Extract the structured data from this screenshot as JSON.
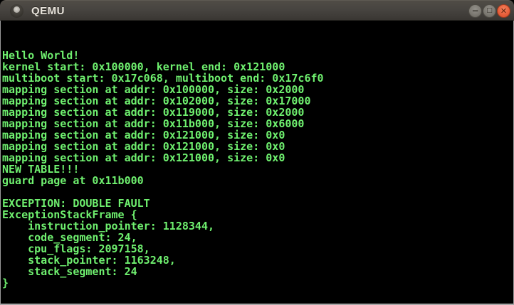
{
  "window": {
    "title": "QEMU",
    "controls": {
      "minimize_glyph": "−",
      "maximize_glyph": "□",
      "close_glyph": "✕"
    }
  },
  "colors": {
    "titlebar_top": "#504c46",
    "titlebar_bottom": "#3a3733",
    "title_text": "#e7e3db",
    "close_button": "#e8603c",
    "button_gray": "#7d7a73",
    "terminal_background": "#000000",
    "terminal_text": "#6ff06f",
    "window_border": "#9a9a9a"
  },
  "terminal": {
    "lines": [
      "Hello World!",
      "kernel start: 0x100000, kernel end: 0x121000",
      "multiboot start: 0x17c068, multiboot end: 0x17c6f0",
      "mapping section at addr: 0x100000, size: 0x2000",
      "mapping section at addr: 0x102000, size: 0x17000",
      "mapping section at addr: 0x119000, size: 0x2000",
      "mapping section at addr: 0x11b000, size: 0x6000",
      "mapping section at addr: 0x121000, size: 0x0",
      "mapping section at addr: 0x121000, size: 0x0",
      "mapping section at addr: 0x121000, size: 0x0",
      "NEW TABLE!!!",
      "guard page at 0x11b000",
      "",
      "EXCEPTION: DOUBLE FAULT",
      "ExceptionStackFrame {",
      "    instruction_pointer: 1128344,",
      "    code_segment: 24,",
      "    cpu_flags: 2097158,",
      "    stack_pointer: 1163248,",
      "    stack_segment: 24",
      "}"
    ]
  }
}
